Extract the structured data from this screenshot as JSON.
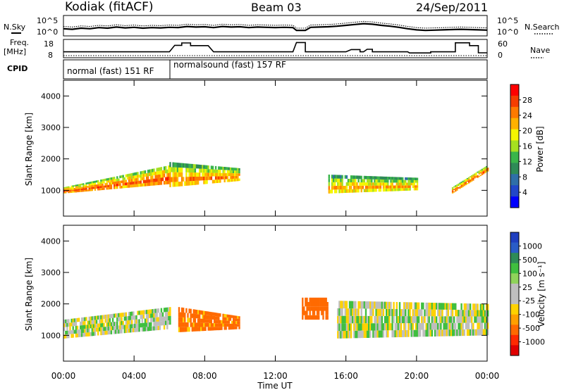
{
  "header": {
    "station": "Kodiak (fitACF)",
    "beam": "Beam 03",
    "date": "24/Sep/2011"
  },
  "summary": {
    "nsky_label": "N.Sky",
    "nsearch_label": "N.Search",
    "freq_label_line1": "Freq.",
    "freq_label_line2": "[MHz]",
    "nave_label": "Nave",
    "cpid_label": "CPID",
    "left_ticks_top": [
      "10^5",
      "10^0"
    ],
    "right_ticks_top": [
      "10^5",
      "10^0"
    ],
    "left_ticks_freq": [
      "18",
      "8"
    ],
    "right_ticks_nave": [
      "60",
      "0"
    ],
    "cpid_segments": [
      {
        "label": "normal (fast) 151 RF",
        "start": 0,
        "end": 6
      },
      {
        "label": "normalsound (fast) 157 RF",
        "start": 6,
        "end": 24
      }
    ],
    "nsky_series": [
      [
        0,
        1.8
      ],
      [
        0.5,
        1.6
      ],
      [
        1,
        2.0
      ],
      [
        1.5,
        1.8
      ],
      [
        2,
        2.2
      ],
      [
        2.5,
        2.0
      ],
      [
        3,
        2.4
      ],
      [
        3.5,
        2.1
      ],
      [
        4,
        2.3
      ],
      [
        4.5,
        2.0
      ],
      [
        5,
        2.2
      ],
      [
        5.5,
        2.1
      ],
      [
        6,
        2.3
      ],
      [
        6.5,
        2.2
      ],
      [
        7,
        2.6
      ],
      [
        7.5,
        2.4
      ],
      [
        8,
        2.5
      ],
      [
        8.5,
        2.2
      ],
      [
        9,
        2.6
      ],
      [
        9.5,
        2.4
      ],
      [
        10,
        2.5
      ],
      [
        10.5,
        2.2
      ],
      [
        11,
        2.4
      ],
      [
        11.5,
        2.3
      ],
      [
        12,
        2.2
      ],
      [
        12.5,
        2.3
      ],
      [
        13,
        2.2
      ],
      [
        13.2,
        1.2
      ],
      [
        13.7,
        1.2
      ],
      [
        14,
        2.3
      ],
      [
        14.5,
        2.4
      ],
      [
        15,
        2.5
      ],
      [
        15.5,
        2.7
      ],
      [
        16,
        3.0
      ],
      [
        16.5,
        3.3
      ],
      [
        17,
        3.6
      ],
      [
        17.5,
        3.4
      ],
      [
        18,
        3.0
      ],
      [
        18.5,
        2.7
      ],
      [
        19,
        2.3
      ],
      [
        19.5,
        1.8
      ],
      [
        20,
        1.4
      ],
      [
        20.5,
        1.2
      ],
      [
        21,
        1.3
      ],
      [
        21.5,
        1.4
      ],
      [
        22,
        1.5
      ],
      [
        22.5,
        1.6
      ],
      [
        23,
        1.5
      ],
      [
        23.5,
        1.4
      ],
      [
        24,
        1.3
      ]
    ],
    "freq_series": [
      [
        0,
        11.2
      ],
      [
        6,
        11.2
      ],
      [
        6.3,
        15.8
      ],
      [
        6.7,
        15.8
      ],
      [
        6.7,
        17.5
      ],
      [
        7.2,
        17.5
      ],
      [
        7.2,
        15.6
      ],
      [
        8,
        15.6
      ],
      [
        8.2,
        15.6
      ],
      [
        8.5,
        11.2
      ],
      [
        13,
        11.2
      ],
      [
        13.2,
        17.8
      ],
      [
        13.7,
        17.8
      ],
      [
        13.7,
        11.2
      ],
      [
        16,
        11.2
      ],
      [
        16.3,
        12.8
      ],
      [
        16.8,
        12.8
      ],
      [
        16.8,
        11.2
      ],
      [
        17,
        11.2
      ],
      [
        17.2,
        13.0
      ],
      [
        17.5,
        13.0
      ],
      [
        17.5,
        11.2
      ],
      [
        19.5,
        11.2
      ],
      [
        19.6,
        10.4
      ],
      [
        20.8,
        10.4
      ],
      [
        20.8,
        11.2
      ],
      [
        22.2,
        11.2
      ],
      [
        22.2,
        17.6
      ],
      [
        23,
        17.6
      ],
      [
        23,
        15.6
      ],
      [
        23.5,
        15.6
      ],
      [
        23.5,
        10.5
      ],
      [
        24,
        10.5
      ]
    ]
  },
  "power_panel": {
    "ylabel": "Slant Range [km]",
    "colorbar_label": "Power [dB]",
    "colorbar_ticks": [
      "28",
      "24",
      "20",
      "16",
      "12",
      "8",
      "4"
    ],
    "colorbar_colors": [
      "#ff0000",
      "#f53d00",
      "#ff7a00",
      "#ffb100",
      "#f5f500",
      "#a6e020",
      "#39b54a",
      "#2e8b57",
      "#2f6fa8",
      "#2247c9",
      "#0000ff"
    ]
  },
  "velocity_panel": {
    "ylabel": "Slant Range [km]",
    "colorbar_label": "Velocity [m s⁻¹]",
    "colorbar_ticks": [
      "1000",
      "500",
      "100",
      "25",
      "-25",
      "-100",
      "-500",
      "-1000"
    ],
    "colorbar_colors": [
      "#1f3fbf",
      "#2a5cc7",
      "#2e8b57",
      "#3fbf3f",
      "#8fd35a",
      "#bebebe",
      "#bebebe",
      "#ffd200",
      "#ffa000",
      "#ff6a00",
      "#ff2a00",
      "#e00000"
    ]
  },
  "y_ticks": [
    "4000",
    "3000",
    "2000",
    "1000"
  ],
  "x_axis": {
    "label": "Time UT",
    "ticks": [
      "00:00",
      "04:00",
      "08:00",
      "12:00",
      "16:00",
      "20:00",
      "00:00"
    ]
  },
  "chart_data": [
    {
      "type": "heatmap",
      "title": "Power [dB]",
      "xlabel": "Time UT",
      "ylabel": "Slant Range [km]",
      "xlim": [
        0,
        24
      ],
      "ylim": [
        180,
        4500
      ],
      "clim": [
        0,
        30
      ],
      "bands": [
        {
          "t": [
            0,
            6
          ],
          "range_low": [
            900,
            1200
          ],
          "range_high": [
            1100,
            1800
          ],
          "power": 26
        },
        {
          "t": [
            6,
            10
          ],
          "range_low": [
            1100,
            1300
          ],
          "range_high": [
            1900,
            1700
          ],
          "power": 24
        },
        {
          "t": [
            15,
            20
          ],
          "range_low": [
            900,
            1000
          ],
          "range_high": [
            1500,
            1400
          ],
          "power": 22
        },
        {
          "t": [
            22,
            24
          ],
          "range_low": [
            900,
            1600
          ],
          "range_high": [
            1100,
            1800
          ],
          "power": 26
        }
      ]
    },
    {
      "type": "heatmap",
      "title": "Velocity [m s⁻¹]",
      "xlabel": "Time UT",
      "ylabel": "Slant Range [km]",
      "xlim": [
        0,
        24
      ],
      "ylim": [
        180,
        4500
      ],
      "clim": [
        -1000,
        1000
      ],
      "bands": [
        {
          "t": [
            0,
            6
          ],
          "range_low": [
            900,
            1200
          ],
          "range_high": [
            1500,
            1900
          ],
          "velocity": 0
        },
        {
          "t": [
            6.5,
            10
          ],
          "range_low": [
            1100,
            1200
          ],
          "range_high": [
            1900,
            1600
          ],
          "velocity": -150
        },
        {
          "t": [
            13.5,
            15
          ],
          "range_low": [
            1500,
            1500
          ],
          "range_high": [
            2200,
            2200
          ],
          "velocity": -300
        },
        {
          "t": [
            15.5,
            24
          ],
          "range_low": [
            900,
            1000
          ],
          "range_high": [
            2100,
            2000
          ],
          "velocity": 0
        }
      ]
    }
  ]
}
